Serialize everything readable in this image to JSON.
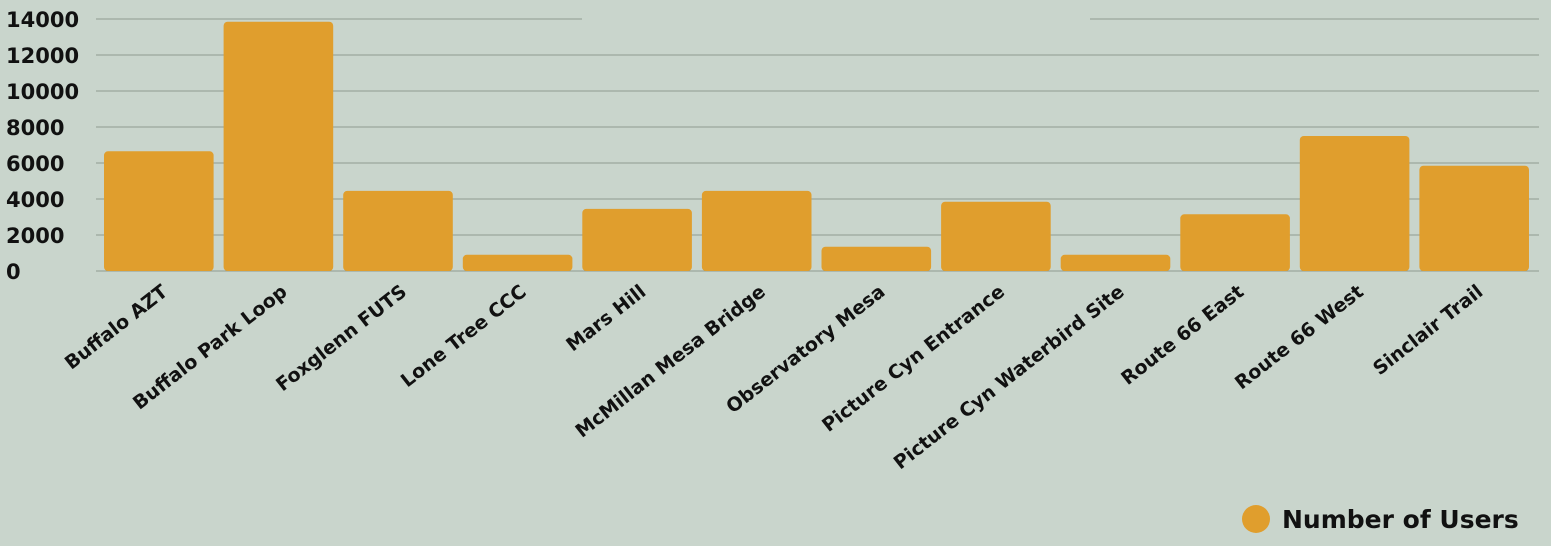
{
  "chart_data": {
    "type": "bar",
    "categories": [
      "Buffalo AZT",
      "Buffalo Park Loop",
      "Foxglenn FUTS",
      "Lone Tree CCC",
      "Mars Hill",
      "McMillan Mesa Bridge",
      "Observatory Mesa",
      "Picture Cyn Entrance",
      "Picture Cyn Waterbird Site",
      "Route 66 East",
      "Route 66 West",
      "Sinclair Trail"
    ],
    "series": [
      {
        "name": "Number of Users",
        "values": [
          6650,
          13850,
          4450,
          900,
          3450,
          4450,
          1350,
          3850,
          900,
          3150,
          7500,
          5850
        ]
      }
    ],
    "yticks": [
      "0",
      "2000",
      "4000",
      "6000",
      "8000",
      "10000",
      "12000",
      "14000"
    ],
    "ylim": [
      0,
      14000
    ],
    "grid": true,
    "legend_position": "bottom-right",
    "title": "",
    "xlabel": "",
    "ylabel": ""
  },
  "colors": {
    "background": "#c9d5cc",
    "bar": "#e09e2d",
    "grid": "#8e9a90",
    "text": "#111111"
  }
}
